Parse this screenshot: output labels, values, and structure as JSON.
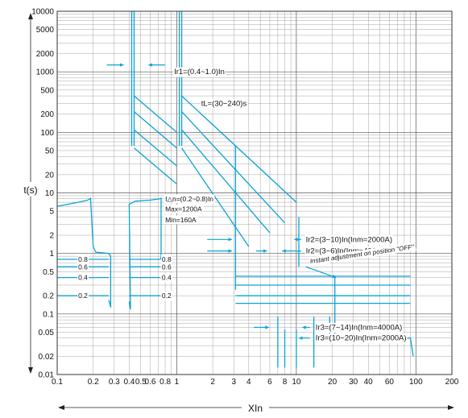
{
  "chart_data": {
    "type": "line",
    "title": "",
    "xlabel": "XIn",
    "ylabel": "t(s)",
    "x_scale": "log",
    "y_scale": "log",
    "xlim": [
      0.1,
      200
    ],
    "ylim": [
      0.01,
      10000
    ],
    "grid": true,
    "curve_color": "#0aa3d6",
    "x_ticks": [
      {
        "v": 0.1,
        "label": "0.1"
      },
      {
        "v": 0.2,
        "label": "0.2"
      },
      {
        "v": 0.3,
        "label": "0.3"
      },
      {
        "v": 0.4,
        "label": "0.4"
      },
      {
        "v": 0.5,
        "label": "0.5"
      },
      {
        "v": 0.6,
        "label": "0.6"
      },
      {
        "v": 0.8,
        "label": "0.8"
      },
      {
        "v": 1,
        "label": "1"
      },
      {
        "v": 2,
        "label": "2"
      },
      {
        "v": 3,
        "label": "3"
      },
      {
        "v": 4,
        "label": "4"
      },
      {
        "v": 6,
        "label": "6"
      },
      {
        "v": 8,
        "label": "8"
      },
      {
        "v": 10,
        "label": "10"
      },
      {
        "v": 20,
        "label": "20"
      },
      {
        "v": 30,
        "label": "30"
      },
      {
        "v": 40,
        "label": "40"
      },
      {
        "v": 60,
        "label": "60"
      },
      {
        "v": 100,
        "label": "100"
      },
      {
        "v": 200,
        "label": "200"
      }
    ],
    "y_ticks": [
      {
        "v": 10000,
        "label": "10000"
      },
      {
        "v": 5000,
        "label": "5000"
      },
      {
        "v": 2000,
        "label": "2000"
      },
      {
        "v": 1000,
        "label": "1000"
      },
      {
        "v": 500,
        "label": "500"
      },
      {
        "v": 200,
        "label": "200"
      },
      {
        "v": 100,
        "label": "100"
      },
      {
        "v": 50,
        "label": "50"
      },
      {
        "v": 20,
        "label": "20"
      },
      {
        "v": 10,
        "label": "10"
      },
      {
        "v": 5,
        "label": "5"
      },
      {
        "v": 2,
        "label": "2"
      },
      {
        "v": 1,
        "label": "1"
      },
      {
        "v": 0.5,
        "label": "0.5"
      },
      {
        "v": 0.2,
        "label": "0.2"
      },
      {
        "v": 0.1,
        "label": "0.1"
      },
      {
        "v": 0.05,
        "label": "0.05"
      },
      {
        "v": 0.02,
        "label": "0.02"
      },
      {
        "v": 0.01,
        "label": "0.01"
      }
    ],
    "series": [
      {
        "id": "ground-fault",
        "points": [
          [
            0.1,
            6
          ],
          [
            0.15,
            7
          ],
          [
            0.18,
            7.6
          ],
          [
            0.19,
            8.2
          ],
          [
            0.2,
            1.3
          ],
          [
            0.21,
            1.05
          ],
          [
            0.27,
            1
          ],
          [
            0.28,
            0.9
          ],
          [
            0.28,
            0.13
          ],
          [
            0.27,
            0.17
          ]
        ]
      },
      {
        "id": "ground-fault-right",
        "points": [
          [
            0.4,
            0.16
          ],
          [
            0.41,
            0.12
          ],
          [
            0.4,
            6.5
          ],
          [
            0.45,
            7.3
          ],
          [
            0.6,
            7.6
          ],
          [
            0.72,
            8
          ],
          [
            0.74,
            8.2
          ],
          [
            0.74,
            0.9
          ],
          [
            0.73,
            0.8
          ]
        ]
      },
      {
        "id": "gf-0.8-left",
        "points": [
          [
            0.1,
            0.8
          ],
          [
            0.27,
            0.8
          ]
        ]
      },
      {
        "id": "gf-0.6-left",
        "points": [
          [
            0.1,
            0.6
          ],
          [
            0.27,
            0.6
          ]
        ]
      },
      {
        "id": "gf-0.4-left",
        "points": [
          [
            0.1,
            0.4
          ],
          [
            0.27,
            0.4
          ]
        ]
      },
      {
        "id": "gf-0.2-left",
        "points": [
          [
            0.1,
            0.2
          ],
          [
            0.27,
            0.2
          ]
        ]
      },
      {
        "id": "gf-0.8-right",
        "points": [
          [
            0.4,
            0.8
          ],
          [
            0.73,
            0.8
          ]
        ]
      },
      {
        "id": "gf-0.6-right",
        "points": [
          [
            0.4,
            0.6
          ],
          [
            0.73,
            0.6
          ]
        ]
      },
      {
        "id": "gf-0.4-right",
        "points": [
          [
            0.4,
            0.4
          ],
          [
            0.73,
            0.4
          ]
        ]
      },
      {
        "id": "gf-0.2-right",
        "points": [
          [
            0.4,
            0.2
          ],
          [
            0.73,
            0.2
          ]
        ]
      },
      {
        "id": "lt-min-vert-a",
        "points": [
          [
            0.42,
            10000
          ],
          [
            0.42,
            60
          ]
        ]
      },
      {
        "id": "lt-min-vert-b",
        "points": [
          [
            0.44,
            10000
          ],
          [
            0.44,
            60
          ]
        ]
      },
      {
        "id": "lt-min-1",
        "points": [
          [
            0.44,
            400
          ],
          [
            1.0,
            100
          ]
        ]
      },
      {
        "id": "lt-min-2",
        "points": [
          [
            0.44,
            220
          ],
          [
            1.0,
            55
          ]
        ]
      },
      {
        "id": "lt-min-3",
        "points": [
          [
            0.44,
            110
          ],
          [
            1.0,
            28
          ]
        ]
      },
      {
        "id": "lt-min-4",
        "points": [
          [
            0.44,
            55
          ],
          [
            1.0,
            14
          ]
        ]
      },
      {
        "id": "lt-max-vert-a",
        "points": [
          [
            1.05,
            10000
          ],
          [
            1.05,
            60
          ]
        ]
      },
      {
        "id": "lt-max-vert-b",
        "points": [
          [
            1.1,
            10000
          ],
          [
            1.1,
            60
          ]
        ]
      },
      {
        "id": "lt-max-1",
        "points": [
          [
            1.1,
            400
          ],
          [
            10,
            7.0
          ]
        ]
      },
      {
        "id": "lt-max-2",
        "points": [
          [
            1.1,
            220
          ],
          [
            8,
            3.2
          ]
        ]
      },
      {
        "id": "lt-max-3",
        "points": [
          [
            1.1,
            110
          ],
          [
            6,
            2.2
          ]
        ]
      },
      {
        "id": "lt-max-4",
        "points": [
          [
            1.1,
            55
          ],
          [
            4,
            1.3
          ]
        ]
      },
      {
        "id": "st-min-upper",
        "points": [
          [
            3.1,
            60
          ],
          [
            3.1,
            0.25
          ]
        ]
      },
      {
        "id": "st-max-upper",
        "points": [
          [
            10.5,
            4
          ],
          [
            10.5,
            0.6
          ]
        ]
      },
      {
        "id": "st-0.4-line",
        "points": [
          [
            3.1,
            0.42
          ],
          [
            90,
            0.42
          ]
        ]
      },
      {
        "id": "st-0.3-line",
        "points": [
          [
            3.1,
            0.3
          ],
          [
            90,
            0.3
          ]
        ]
      },
      {
        "id": "st-0.2-line",
        "points": [
          [
            3.1,
            0.2
          ],
          [
            90,
            0.2
          ]
        ]
      },
      {
        "id": "st-0.1-line",
        "points": [
          [
            3.1,
            0.15
          ],
          [
            90,
            0.15
          ]
        ]
      },
      {
        "id": "inst-1",
        "points": [
          [
            7,
            0.09
          ],
          [
            7,
            0.013
          ]
        ]
      },
      {
        "id": "inst-2",
        "points": [
          [
            8,
            0.055
          ],
          [
            8,
            0.013
          ]
        ]
      },
      {
        "id": "inst-3",
        "points": [
          [
            10,
            0.055
          ],
          [
            10,
            0.013
          ]
        ]
      },
      {
        "id": "inst-4",
        "points": [
          [
            14,
            0.09
          ],
          [
            14,
            0.013
          ]
        ]
      },
      {
        "id": "inst-5",
        "points": [
          [
            19,
            0.09
          ],
          [
            19,
            0.04
          ]
        ]
      },
      {
        "id": "inst-6",
        "points": [
          [
            21,
            0.4
          ],
          [
            21,
            0.04
          ],
          [
            90,
            0.04
          ],
          [
            95,
            0.02
          ]
        ]
      }
    ],
    "annotations": [
      {
        "text": "Ir1=(0.4~1.0)In",
        "x": 0.95,
        "y": 1000,
        "style": "ann"
      },
      {
        "text": "tL=(30~240)s",
        "x": 1.6,
        "y": 300,
        "style": "ann"
      },
      {
        "text": "I△n=(0.2~0.8)In",
        "x": 0.8,
        "y": 8,
        "style": "ann-small"
      },
      {
        "text": "Max=1200A",
        "x": 0.8,
        "y": 5.4,
        "style": "ann-small"
      },
      {
        "text": "Min=160A",
        "x": 0.8,
        "y": 3.6,
        "style": "ann-small"
      },
      {
        "text": "0.8",
        "x": 0.15,
        "y": 0.8,
        "style": "ann-small"
      },
      {
        "text": "0.6",
        "x": 0.15,
        "y": 0.6,
        "style": "ann-small"
      },
      {
        "text": "0.4",
        "x": 0.15,
        "y": 0.4,
        "style": "ann-small"
      },
      {
        "text": "0.2",
        "x": 0.15,
        "y": 0.2,
        "style": "ann-small"
      },
      {
        "text": "0.8",
        "x": 0.75,
        "y": 0.8,
        "style": "ann-small"
      },
      {
        "text": "0.6",
        "x": 0.75,
        "y": 0.6,
        "style": "ann-small"
      },
      {
        "text": "0.4",
        "x": 0.75,
        "y": 0.4,
        "style": "ann-small"
      },
      {
        "text": "0.2",
        "x": 0.75,
        "y": 0.2,
        "style": "ann-small"
      },
      {
        "text": "Ir2=(3~10)In(Inm=2000A)",
        "x": 12,
        "y": 1.7,
        "style": "ann"
      },
      {
        "text": "Ir2=(3~6)In(Inm=4000A)",
        "x": 12,
        "y": 1.1,
        "style": "ann"
      },
      {
        "text": "Instant adjustment on position \"OFF\"",
        "x": 13,
        "y": 0.75,
        "style": "ann-ital"
      },
      {
        "text": "Ir3=(7~14)In(Inm=4000A)",
        "x": 14.5,
        "y": 0.06,
        "style": "ann"
      },
      {
        "text": "Ir3=(10~20)In(Inm=2000A)",
        "x": 14.5,
        "y": 0.04,
        "style": "ann"
      }
    ],
    "arrows": [
      {
        "from": [
          0.26,
          1300
        ],
        "to": [
          0.36,
          1300
        ]
      },
      {
        "from": [
          0.8,
          1300
        ],
        "to": [
          0.58,
          1300
        ]
      },
      {
        "from": [
          2.8,
          300
        ],
        "to": [
          1.8,
          300
        ]
      },
      {
        "from": [
          1.8,
          1.7
        ],
        "to": [
          2.9,
          1.7
        ]
      },
      {
        "from": [
          1.8,
          1.1
        ],
        "to": [
          2.9,
          1.1
        ]
      },
      {
        "from": [
          4.6,
          1.1
        ],
        "to": [
          5.7,
          1.1
        ]
      },
      {
        "from": [
          11,
          1.7
        ],
        "to": [
          9.6,
          1.7
        ]
      },
      {
        "from": [
          11,
          1.1
        ],
        "to": [
          7.6,
          1.1
        ]
      },
      {
        "from": [
          12,
          0.6
        ],
        "to": [
          21.5,
          0.4
        ]
      },
      {
        "from": [
          4.4,
          0.06
        ],
        "to": [
          5.9,
          0.06
        ]
      },
      {
        "from": [
          13,
          0.06
        ],
        "to": [
          11.2,
          0.06
        ]
      },
      {
        "from": [
          13,
          0.04
        ],
        "to": [
          10.5,
          0.04
        ]
      }
    ]
  }
}
